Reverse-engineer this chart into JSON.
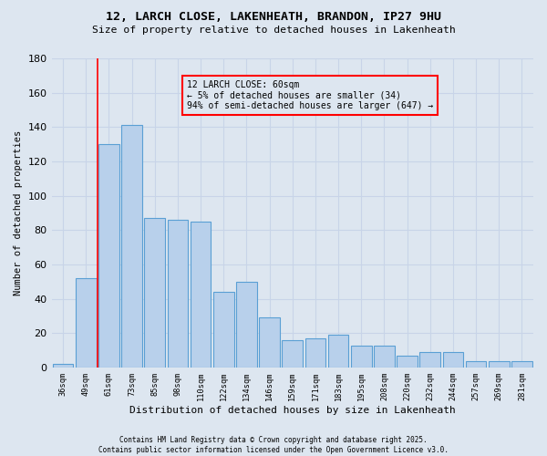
{
  "title1": "12, LARCH CLOSE, LAKENHEATH, BRANDON, IP27 9HU",
  "title2": "Size of property relative to detached houses in Lakenheath",
  "xlabel": "Distribution of detached houses by size in Lakenheath",
  "ylabel": "Number of detached properties",
  "categories": [
    "36sqm",
    "49sqm",
    "61sqm",
    "73sqm",
    "85sqm",
    "98sqm",
    "110sqm",
    "122sqm",
    "134sqm",
    "146sqm",
    "159sqm",
    "171sqm",
    "183sqm",
    "195sqm",
    "208sqm",
    "220sqm",
    "232sqm",
    "244sqm",
    "257sqm",
    "269sqm",
    "281sqm"
  ],
  "values": [
    2,
    52,
    130,
    141,
    87,
    86,
    85,
    44,
    50,
    29,
    16,
    17,
    19,
    13,
    13,
    7,
    9,
    9,
    4,
    4,
    4
  ],
  "bar_color": "#b8d0eb",
  "bar_edge_color": "#5a9fd4",
  "grid_color": "#c8d4e8",
  "background_color": "#dde6f0",
  "red_line_x": 1.5,
  "annotation_text": "12 LARCH CLOSE: 60sqm\n← 5% of detached houses are smaller (34)\n94% of semi-detached houses are larger (647) →",
  "footnote": "Contains HM Land Registry data © Crown copyright and database right 2025.\nContains public sector information licensed under the Open Government Licence v3.0.",
  "ylim": [
    0,
    180
  ],
  "yticks": [
    0,
    20,
    40,
    60,
    80,
    100,
    120,
    140,
    160,
    180
  ]
}
